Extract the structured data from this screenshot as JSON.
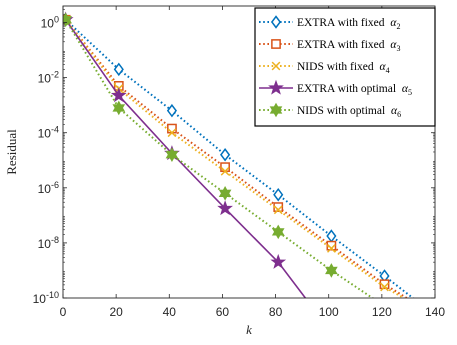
{
  "chart_data": {
    "type": "line",
    "xlabel": "k",
    "ylabel": "Residual",
    "xlim": [
      0,
      140
    ],
    "ylim_log10": [
      -10,
      0.6
    ],
    "y_scale": "log",
    "grid": false,
    "legend_position": "top-right",
    "x_ticks": [
      {
        "value": 0,
        "label": "0"
      },
      {
        "value": 20,
        "label": "20"
      },
      {
        "value": 40,
        "label": "40"
      },
      {
        "value": 60,
        "label": "60"
      },
      {
        "value": 80,
        "label": "80"
      },
      {
        "value": 100,
        "label": "100"
      },
      {
        "value": 120,
        "label": "120"
      },
      {
        "value": 140,
        "label": "140"
      }
    ],
    "y_ticks": [
      {
        "exp": 0,
        "base": "10",
        "sup": "0"
      },
      {
        "exp": -2,
        "base": "10",
        "sup": "-2"
      },
      {
        "exp": -4,
        "base": "10",
        "sup": "-4"
      },
      {
        "exp": -6,
        "base": "10",
        "sup": "-6"
      },
      {
        "exp": -8,
        "base": "10",
        "sup": "-8"
      },
      {
        "exp": -10,
        "base": "10",
        "sup": "-10"
      }
    ],
    "series": [
      {
        "name": "EXTRA with fixed",
        "sub_symbol": "α",
        "subscript": "2",
        "color": "#0072BD",
        "marker": "diamond",
        "line_style": "dotted",
        "x": [
          1,
          21,
          41,
          61,
          81,
          101,
          121,
          133
        ],
        "log10_y": [
          0.1,
          -1.7,
          -3.2,
          -4.8,
          -6.25,
          -7.75,
          -9.2,
          -10.1
        ]
      },
      {
        "name": "EXTRA with fixed",
        "sub_symbol": "α",
        "subscript": "3",
        "color": "#D95319",
        "marker": "square",
        "line_style": "dotted",
        "x": [
          1,
          21,
          41,
          61,
          81,
          101,
          121,
          131
        ],
        "log10_y": [
          0.1,
          -2.3,
          -3.85,
          -5.25,
          -6.7,
          -8.1,
          -9.5,
          -10.1
        ]
      },
      {
        "name": "NIDS with fixed",
        "sub_symbol": "α",
        "subscript": "4",
        "color": "#EDB120",
        "marker": "x",
        "line_style": "dotted",
        "x": [
          1,
          21,
          41,
          61,
          81,
          101,
          121,
          130
        ],
        "log10_y": [
          0.1,
          -2.4,
          -4.0,
          -5.4,
          -6.8,
          -8.2,
          -9.6,
          -10.1
        ]
      },
      {
        "name": "EXTRA with optimal",
        "sub_symbol": "α",
        "subscript": "5",
        "color": "#7E2F8E",
        "marker": "star",
        "line_style": "solid",
        "x": [
          1,
          21,
          41,
          61,
          81,
          92
        ],
        "log10_y": [
          0.1,
          -2.65,
          -4.75,
          -6.75,
          -8.7,
          -10.1
        ]
      },
      {
        "name": "NIDS with optimal",
        "sub_symbol": "α",
        "subscript": "6",
        "color": "#77AC30",
        "marker": "hexagram",
        "line_style": "dotted",
        "x": [
          1,
          21,
          41,
          61,
          81,
          101,
          118
        ],
        "log10_y": [
          0.1,
          -3.1,
          -4.8,
          -6.2,
          -7.6,
          -9.0,
          -10.1
        ]
      }
    ]
  }
}
